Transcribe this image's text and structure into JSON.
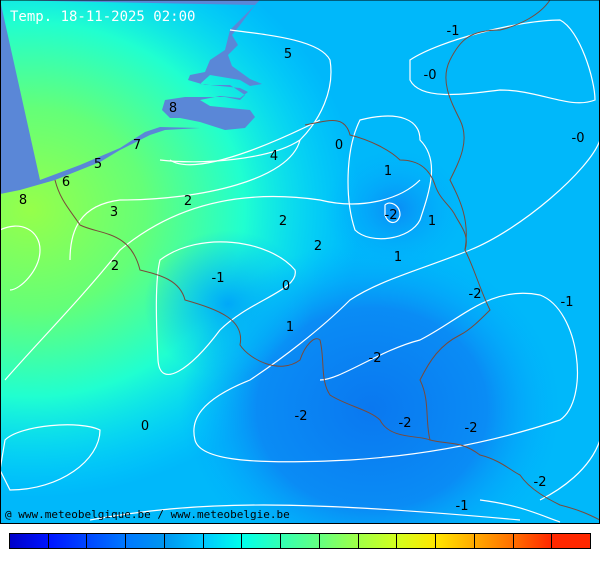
{
  "title": "Temp. 18-11-2025 02:00",
  "credit": "@ www.meteobelgique.be / www.meteobelgie.be",
  "colors": {
    "sea": "#5a87d7",
    "contour": "#ffffff",
    "border": "#6b4a3a"
  },
  "contour_labels": [
    "5",
    "-1",
    "-0",
    "-0",
    "8",
    "7",
    "5",
    "4",
    "0",
    "1",
    "6",
    "8",
    "3",
    "2",
    "-2",
    "1",
    "2",
    "2",
    "1",
    "2",
    "-1",
    "0",
    "-2",
    "-1",
    "1",
    "-2",
    "-2",
    "-2",
    "-2",
    "0",
    "-2",
    "-1"
  ],
  "colorbar": [
    "#0000c8",
    "#0014ff",
    "#0046ff",
    "#0078ff",
    "#0096f0",
    "#00c8ff",
    "#00ffeb",
    "#32ffb4",
    "#64ff80",
    "#a0ff46",
    "#d2ff1e",
    "#ffe600",
    "#ffaa00",
    "#ff6e00",
    "#ff2800"
  ]
}
